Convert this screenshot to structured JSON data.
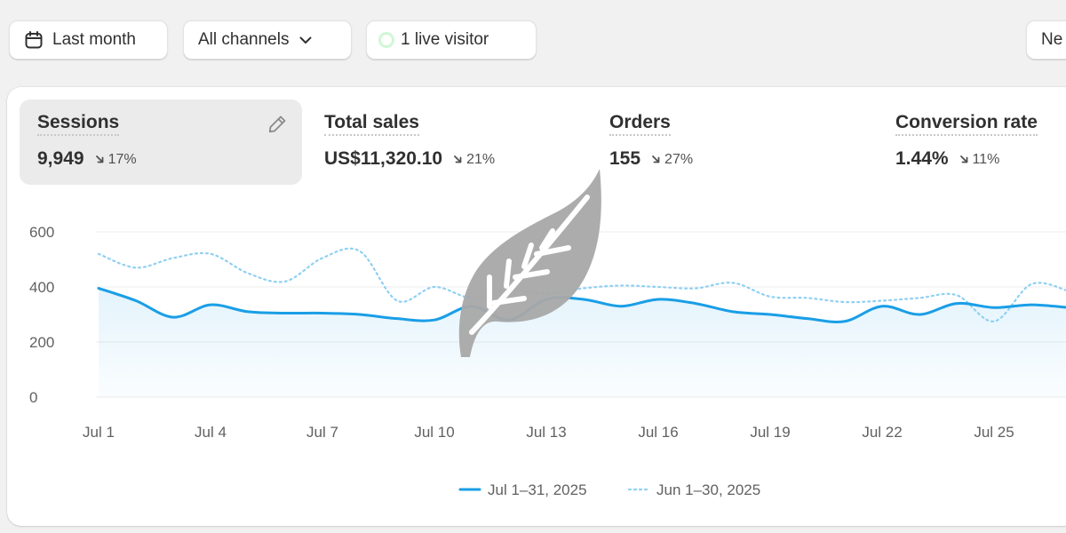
{
  "toolbar": {
    "date_label": "Last month",
    "channels_label": "All channels",
    "live_label": "1 live visitor",
    "new_label": "Ne"
  },
  "colors": {
    "current_series": "#1a9ee6",
    "previous_series": "#8fd0f2",
    "live_dot": "#29db40",
    "grid": "#ececec"
  },
  "icons": {
    "date": "calendar-icon",
    "channels": "chevron-down-icon",
    "edit": "pencil-icon",
    "delta": "arrow-down-right-icon",
    "watermark": "leaf-icon"
  },
  "metrics": [
    {
      "title": "Sessions",
      "value": "9,949",
      "delta": "17%",
      "active": true
    },
    {
      "title": "Total sales",
      "value": "US$11,320.10",
      "delta": "21%"
    },
    {
      "title": "Orders",
      "value": "155",
      "delta": "27%"
    },
    {
      "title": "Conversion rate",
      "value": "1.44%",
      "delta": "11%"
    }
  ],
  "chart_data": {
    "type": "area",
    "y_ticks": [
      "600",
      "400",
      "200",
      "0"
    ],
    "ylim": [
      0,
      600
    ],
    "x_ticks": [
      "Jul 1",
      "Jul 4",
      "Jul 7",
      "Jul 10",
      "Jul 13",
      "Jul 16",
      "Jul 19",
      "Jul 22",
      "Jul 25"
    ],
    "x_days": [
      1,
      2,
      3,
      4,
      5,
      6,
      7,
      8,
      9,
      10,
      11,
      12,
      13,
      14,
      15,
      16,
      17,
      18,
      19,
      20,
      21,
      22,
      23,
      24,
      25,
      26,
      27
    ],
    "series": [
      {
        "name": "Jul 1–31, 2025",
        "style": "solid",
        "values": [
          395,
          350,
          290,
          335,
          310,
          305,
          305,
          300,
          285,
          280,
          330,
          280,
          355,
          355,
          330,
          355,
          340,
          310,
          300,
          285,
          275,
          330,
          300,
          340,
          325,
          335,
          325
        ]
      },
      {
        "name": "Jun 1–30, 2025",
        "style": "dotted",
        "values": [
          520,
          470,
          505,
          520,
          450,
          420,
          505,
          530,
          350,
          400,
          360,
          390,
          375,
          395,
          405,
          400,
          395,
          415,
          365,
          360,
          345,
          350,
          360,
          370,
          275,
          410,
          385
        ]
      }
    ],
    "grid": true,
    "legend_position": "bottom"
  }
}
